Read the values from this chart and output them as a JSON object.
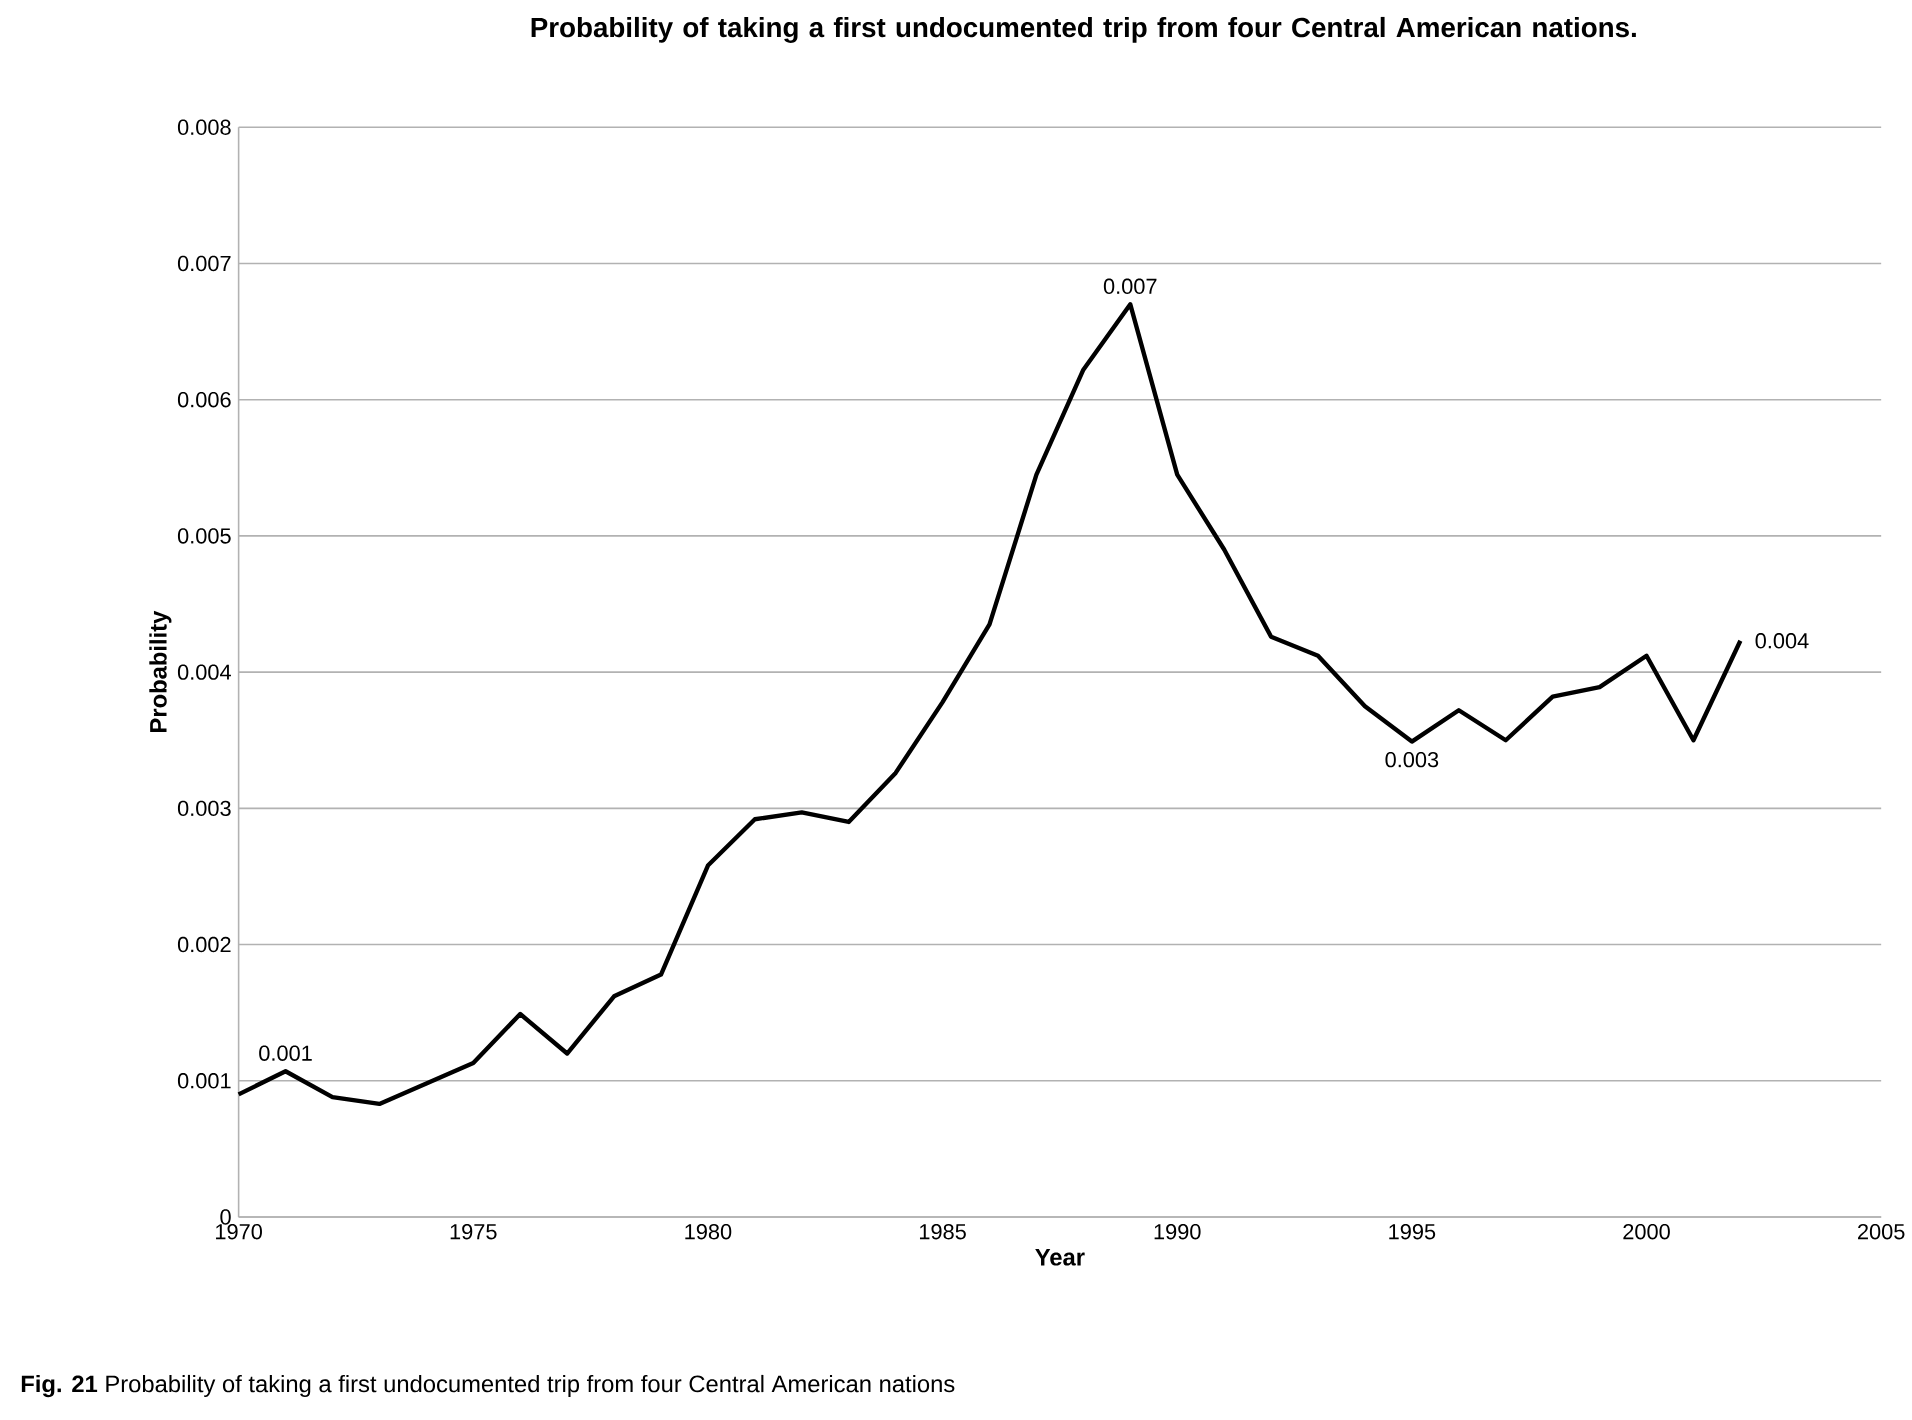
{
  "chart_data": {
    "type": "line",
    "title": "Probability of taking a first undocumented trip from four Central American nations.",
    "xlabel": "Year",
    "ylabel": "Probability",
    "x": [
      1970,
      1971,
      1972,
      1973,
      1974,
      1975,
      1976,
      1977,
      1978,
      1979,
      1980,
      1981,
      1982,
      1983,
      1984,
      1985,
      1986,
      1987,
      1988,
      1989,
      1990,
      1991,
      1992,
      1993,
      1994,
      1995,
      1996,
      1997,
      1998,
      1999,
      2000,
      2001,
      2002
    ],
    "series": [
      {
        "color": "#000000",
        "values": [
          0.0009,
          0.00107,
          0.00088,
          0.00083,
          0.00098,
          0.00113,
          0.00149,
          0.0012,
          0.00162,
          0.00178,
          0.00258,
          0.00292,
          0.00297,
          0.0029,
          0.00326,
          0.00378,
          0.00435,
          0.00545,
          0.00622,
          0.0067,
          0.00545,
          0.0049,
          0.00426,
          0.00412,
          0.00375,
          0.00349,
          0.00372,
          0.0035,
          0.00382,
          0.00389,
          0.00412,
          0.0035,
          0.00423
        ]
      }
    ],
    "xlim": [
      1970,
      2005
    ],
    "xticks": [
      1970,
      1975,
      1980,
      1985,
      1990,
      1995,
      2000,
      2005
    ],
    "ylim": [
      0,
      0.008
    ],
    "yticks": [
      0,
      0.001,
      0.002,
      0.003,
      0.004,
      0.005,
      0.006,
      0.007,
      0.008
    ],
    "grid": "y",
    "marker": "none",
    "line_style": "solid",
    "annotations": [
      {
        "text": "0.001",
        "x": 1971,
        "y": 0.00107
      },
      {
        "text": "0.007",
        "x": 1989,
        "y": 0.0067
      },
      {
        "text": "0.003",
        "x": 1995,
        "y": 0.00349
      },
      {
        "text": "0.004",
        "x": 2002,
        "y": 0.00423
      },
      "**Fig. 21** Probability of taking a first undocumented trip from four Central American nations"
    ]
  }
}
